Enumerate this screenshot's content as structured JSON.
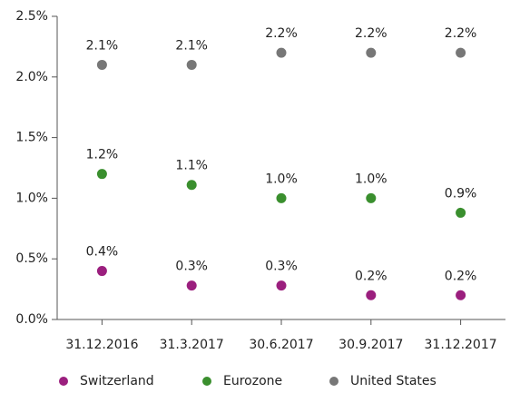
{
  "chart_data": {
    "type": "scatter",
    "categories": [
      "31.12.2016",
      "31.3.2017",
      "30.6.2017",
      "30.9.2017",
      "31.12.2017"
    ],
    "series": [
      {
        "name": "Switzerland",
        "color": "#9b1f7e",
        "values": [
          0.4,
          0.28,
          0.28,
          0.2,
          0.2
        ],
        "value_labels": [
          "0.4%",
          "0.3%",
          "0.3%",
          "0.2%",
          "0.2%"
        ]
      },
      {
        "name": "Eurozone",
        "color": "#3a8f2e",
        "values": [
          1.2,
          1.11,
          1.0,
          1.0,
          0.88
        ],
        "value_labels": [
          "1.2%",
          "1.1%",
          "1.0%",
          "1.0%",
          "0.9%"
        ]
      },
      {
        "name": "United States",
        "color": "#777777",
        "values": [
          2.1,
          2.1,
          2.2,
          2.2,
          2.2
        ],
        "value_labels": [
          "2.1%",
          "2.1%",
          "2.2%",
          "2.2%",
          "2.2%"
        ]
      }
    ],
    "ylim": [
      0,
      2.5
    ],
    "yticks": [
      {
        "value": 0,
        "label": "0.0%"
      },
      {
        "value": 0.5,
        "label": "0.5%"
      },
      {
        "value": 1.0,
        "label": "1.0%"
      },
      {
        "value": 1.5,
        "label": "1.5%"
      },
      {
        "value": 2.0,
        "label": "2.0%"
      },
      {
        "value": 2.5,
        "label": "2.5%"
      }
    ],
    "grid": false,
    "legend": "bottom"
  }
}
